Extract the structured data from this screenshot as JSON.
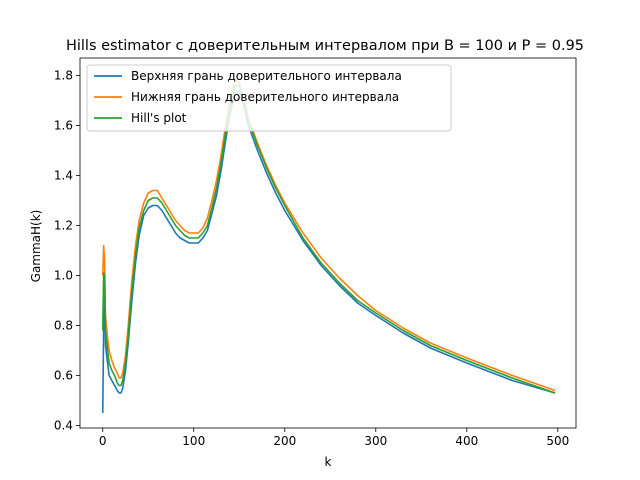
{
  "chart_data": {
    "type": "line",
    "title": "Hills estimator с доверительным интервалом при B = 100 и P = 0.95",
    "xlabel": "k",
    "ylabel": "GammaH(k)",
    "xlim": [
      -25,
      520
    ],
    "ylim": [
      0.39,
      1.87
    ],
    "xticks": [
      0,
      100,
      200,
      300,
      400,
      500
    ],
    "yticks": [
      0.4,
      0.6,
      0.8,
      1.0,
      1.2,
      1.4,
      1.6,
      1.8
    ],
    "xtick_labels": [
      "0",
      "100",
      "200",
      "300",
      "400",
      "500"
    ],
    "ytick_labels": [
      "0.4",
      "0.6",
      "0.8",
      "1.0",
      "1.2",
      "1.4",
      "1.6",
      "1.8"
    ],
    "grid": false,
    "legend_position": "top-left",
    "series": [
      {
        "name": "Верхняя грань доверительного интервала",
        "color": "#1f77b4",
        "x": [
          0,
          1,
          2,
          3,
          5,
          7,
          10,
          13,
          16,
          18,
          20,
          22,
          25,
          28,
          32,
          36,
          40,
          45,
          50,
          55,
          60,
          65,
          70,
          75,
          80,
          85,
          90,
          95,
          100,
          105,
          110,
          115,
          120,
          125,
          130,
          135,
          140,
          145,
          150,
          155,
          160,
          170,
          180,
          190,
          200,
          220,
          240,
          260,
          280,
          300,
          330,
          360,
          400,
          450,
          497
        ],
        "y": [
          0.45,
          0.8,
          0.94,
          0.72,
          0.66,
          0.6,
          0.58,
          0.56,
          0.54,
          0.53,
          0.53,
          0.55,
          0.62,
          0.73,
          0.9,
          1.05,
          1.16,
          1.24,
          1.27,
          1.28,
          1.28,
          1.26,
          1.23,
          1.2,
          1.17,
          1.15,
          1.14,
          1.13,
          1.13,
          1.13,
          1.15,
          1.18,
          1.25,
          1.32,
          1.42,
          1.54,
          1.65,
          1.73,
          1.74,
          1.68,
          1.6,
          1.5,
          1.41,
          1.33,
          1.26,
          1.14,
          1.04,
          0.96,
          0.89,
          0.84,
          0.77,
          0.71,
          0.65,
          0.58,
          0.53
        ]
      },
      {
        "name": "Нижняя грань доверительного интервала",
        "color": "#ff7f0e",
        "x": [
          0,
          1,
          2,
          3,
          5,
          7,
          10,
          13,
          16,
          18,
          20,
          22,
          25,
          28,
          32,
          36,
          40,
          45,
          50,
          55,
          60,
          65,
          70,
          75,
          80,
          85,
          90,
          95,
          100,
          105,
          110,
          115,
          120,
          125,
          130,
          135,
          140,
          145,
          150,
          155,
          160,
          170,
          180,
          190,
          200,
          220,
          240,
          260,
          280,
          300,
          330,
          360,
          400,
          450,
          497
        ],
        "y": [
          1.0,
          1.12,
          1.06,
          0.84,
          0.76,
          0.7,
          0.66,
          0.63,
          0.61,
          0.59,
          0.59,
          0.61,
          0.68,
          0.8,
          0.98,
          1.12,
          1.22,
          1.29,
          1.33,
          1.34,
          1.34,
          1.31,
          1.28,
          1.25,
          1.22,
          1.2,
          1.18,
          1.17,
          1.17,
          1.17,
          1.19,
          1.23,
          1.3,
          1.38,
          1.48,
          1.6,
          1.71,
          1.78,
          1.77,
          1.71,
          1.63,
          1.53,
          1.44,
          1.36,
          1.29,
          1.17,
          1.07,
          0.99,
          0.92,
          0.86,
          0.79,
          0.73,
          0.67,
          0.6,
          0.54
        ]
      },
      {
        "name": "Hill's plot",
        "color": "#2ca02c",
        "x": [
          0,
          1,
          2,
          3,
          5,
          7,
          10,
          13,
          16,
          18,
          20,
          22,
          25,
          28,
          32,
          36,
          40,
          45,
          50,
          55,
          60,
          65,
          70,
          75,
          80,
          85,
          90,
          95,
          100,
          105,
          110,
          115,
          120,
          125,
          130,
          135,
          140,
          145,
          150,
          155,
          160,
          170,
          180,
          190,
          200,
          220,
          240,
          260,
          280,
          300,
          330,
          360,
          400,
          450,
          497
        ],
        "y": [
          0.78,
          1.01,
          1.0,
          0.78,
          0.71,
          0.65,
          0.62,
          0.6,
          0.57,
          0.56,
          0.56,
          0.58,
          0.65,
          0.76,
          0.94,
          1.08,
          1.19,
          1.26,
          1.3,
          1.31,
          1.31,
          1.29,
          1.26,
          1.23,
          1.2,
          1.18,
          1.16,
          1.15,
          1.15,
          1.15,
          1.17,
          1.2,
          1.27,
          1.35,
          1.45,
          1.57,
          1.68,
          1.76,
          1.76,
          1.7,
          1.62,
          1.52,
          1.43,
          1.35,
          1.28,
          1.15,
          1.05,
          0.97,
          0.9,
          0.85,
          0.78,
          0.72,
          0.66,
          0.59,
          0.53
        ]
      }
    ]
  }
}
